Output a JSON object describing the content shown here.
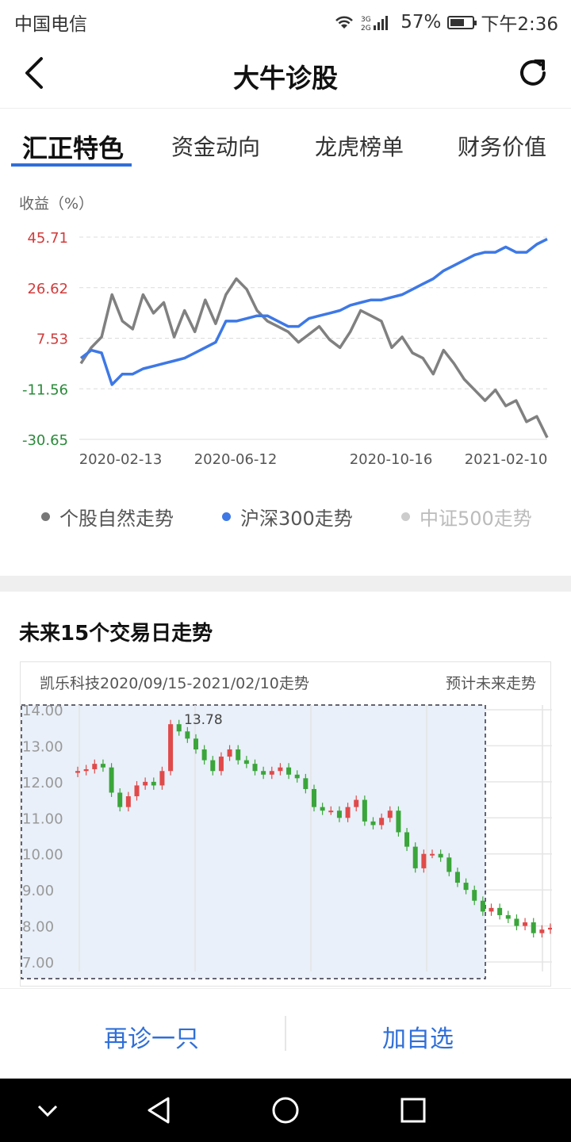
{
  "status_bar": {
    "carrier": "中国电信",
    "network": "3G 2G",
    "battery": "57%",
    "time": "下午2:36"
  },
  "header": {
    "title": "大牛诊股"
  },
  "tabs": [
    {
      "label": "汇正特色",
      "active": true
    },
    {
      "label": "资金动向",
      "active": false
    },
    {
      "label": "龙虎榜单",
      "active": false
    },
    {
      "label": "财务价值",
      "active": false
    }
  ],
  "chart_data": [
    {
      "type": "line",
      "ylabel": "收益（%）",
      "yticks": [
        "45.71",
        "26.62",
        "7.53",
        "-11.56",
        "-30.65"
      ],
      "ylim": [
        -30.65,
        45.71
      ],
      "xticks": [
        "2020-02-13",
        "2020-06-12",
        "2020-10-16",
        "2021-02-10"
      ],
      "grid": "dashed-horizontal",
      "legend_position": "bottom",
      "series": [
        {
          "name": "个股自然走势",
          "color": "#808080",
          "values": [
            -2,
            4,
            8,
            24,
            14,
            11,
            24,
            17,
            21,
            8,
            18,
            10,
            22,
            13,
            24,
            30,
            26,
            18,
            14,
            12,
            10,
            6,
            9,
            12,
            7,
            4,
            10,
            18,
            16,
            14,
            4,
            8,
            2,
            0,
            -6,
            3,
            -2,
            -8,
            -12,
            -16,
            -12,
            -18,
            -16,
            -24,
            -22,
            -30
          ]
        },
        {
          "name": "沪深300走势",
          "color": "#3d78e6",
          "values": [
            0,
            3,
            2,
            -10,
            -6,
            -6,
            -4,
            -3,
            -2,
            -1,
            0,
            2,
            4,
            6,
            14,
            14,
            15,
            16,
            16,
            14,
            12,
            12,
            15,
            16,
            17,
            18,
            20,
            21,
            22,
            22,
            23,
            24,
            26,
            28,
            30,
            33,
            35,
            37,
            39,
            40,
            40,
            42,
            40,
            40,
            43,
            45
          ]
        },
        {
          "name": "中证500走势",
          "color": "#cccccc",
          "values": []
        }
      ]
    },
    {
      "type": "candlestick",
      "title": "凯乐科技2020/09/15-2021/02/10走势",
      "forecast_label": "预计未来走势",
      "yticks": [
        "14.00",
        "13.00",
        "12.00",
        "11.00",
        "10.00",
        "9.00",
        "8.00",
        "7.00"
      ],
      "ylim": [
        7.0,
        14.0
      ],
      "max_label": "13.78",
      "closes": [
        12.3,
        12.35,
        12.5,
        12.4,
        11.7,
        11.3,
        11.6,
        11.9,
        12.0,
        11.9,
        12.3,
        13.6,
        13.4,
        13.2,
        12.9,
        12.6,
        12.3,
        12.7,
        12.9,
        12.6,
        12.5,
        12.3,
        12.2,
        12.3,
        12.4,
        12.2,
        12.1,
        11.8,
        11.3,
        11.2,
        11.2,
        11.0,
        11.3,
        11.5,
        10.9,
        10.8,
        11.0,
        11.2,
        10.6,
        10.2,
        9.6,
        10.0,
        10.0,
        9.9,
        9.5,
        9.2,
        9.0,
        8.7,
        8.4,
        8.5,
        8.3,
        8.2,
        8.0,
        8.1,
        7.8,
        7.9,
        7.95
      ]
    }
  ],
  "bottom_actions": {
    "retry": "再诊一只",
    "add": "加自选"
  }
}
